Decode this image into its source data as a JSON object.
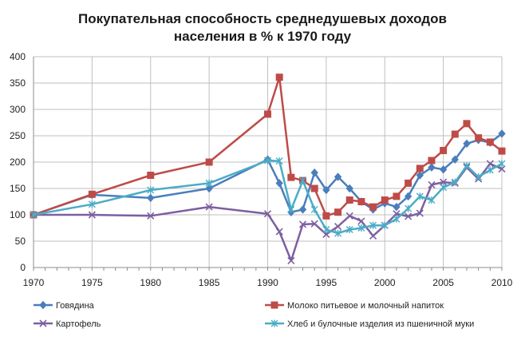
{
  "chart_data": {
    "type": "line",
    "title_lines": [
      "Покупательная способность среднедушевых доходов",
      "населения в % к 1970 году"
    ],
    "xlabel": "",
    "ylabel": "",
    "xlim": [
      1970,
      2010
    ],
    "ylim": [
      0,
      400
    ],
    "x_ticks": [
      1970,
      1975,
      1980,
      1985,
      1990,
      1995,
      2000,
      2005,
      2010
    ],
    "y_ticks": [
      0,
      50,
      100,
      150,
      200,
      250,
      300,
      350,
      400
    ],
    "grid": true,
    "legend_position": "bottom",
    "series": [
      {
        "name": "Говядина",
        "color": "#4a7ebb",
        "marker": "diamond",
        "x": [
          1970,
          1975,
          1980,
          1985,
          1990,
          1991,
          1992,
          1993,
          1994,
          1995,
          1996,
          1997,
          1998,
          1999,
          2000,
          2001,
          2002,
          2003,
          2004,
          2005,
          2006,
          2007,
          2008,
          2009,
          2010
        ],
        "y": [
          100,
          138,
          132,
          150,
          205,
          160,
          105,
          110,
          180,
          147,
          172,
          150,
          125,
          110,
          122,
          115,
          135,
          175,
          190,
          186,
          205,
          235,
          242,
          237,
          254
        ]
      },
      {
        "name": "Молоко питьевое и молочный напиток",
        "color": "#be4b48",
        "marker": "square",
        "x": [
          1970,
          1975,
          1980,
          1985,
          1990,
          1991,
          1992,
          1993,
          1994,
          1995,
          1996,
          1997,
          1998,
          1999,
          2000,
          2001,
          2002,
          2003,
          2004,
          2005,
          2006,
          2007,
          2008,
          2009,
          2010
        ],
        "y": [
          100,
          139,
          175,
          200,
          291,
          361,
          171,
          165,
          150,
          98,
          105,
          128,
          125,
          115,
          128,
          135,
          160,
          188,
          203,
          222,
          253,
          273,
          246,
          238,
          221
        ]
      },
      {
        "name": "Картофель",
        "color": "#7d5fa0",
        "marker": "x",
        "x": [
          1970,
          1975,
          1980,
          1985,
          1990,
          1991,
          1992,
          1993,
          1994,
          1995,
          1996,
          1997,
          1998,
          1999,
          2000,
          2001,
          2002,
          2003,
          2004,
          2005,
          2006,
          2007,
          2008,
          2009,
          2010
        ],
        "y": [
          100,
          100,
          98,
          115,
          102,
          68,
          13,
          82,
          83,
          63,
          78,
          98,
          88,
          60,
          80,
          102,
          97,
          103,
          157,
          162,
          160,
          190,
          168,
          197,
          187
        ]
      },
      {
        "name": "Хлеб и булочные изделия из пшеничной муки",
        "color": "#4bacc6",
        "marker": "asterisk",
        "x": [
          1970,
          1975,
          1980,
          1985,
          1990,
          1991,
          1992,
          1993,
          1994,
          1995,
          1996,
          1997,
          1998,
          1999,
          2000,
          2001,
          2002,
          2003,
          2004,
          2005,
          2006,
          2007,
          2008,
          2009,
          2010
        ],
        "y": [
          100,
          120,
          147,
          160,
          203,
          202,
          110,
          165,
          110,
          72,
          65,
          72,
          75,
          80,
          80,
          92,
          112,
          135,
          128,
          152,
          162,
          193,
          172,
          185,
          197
        ]
      }
    ]
  }
}
